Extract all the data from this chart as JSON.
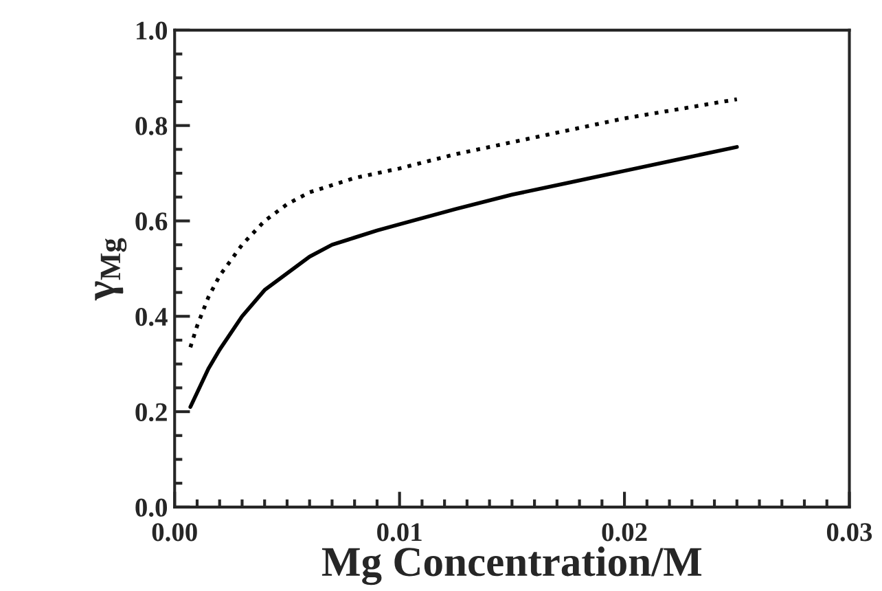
{
  "chart_data": {
    "type": "line",
    "xlabel": "Mg Concentration/M",
    "ylabel": "γ$_{Mg}$",
    "xlim": [
      0,
      0.03
    ],
    "ylim": [
      0,
      1.0
    ],
    "xticks": [
      {
        "value": 0,
        "label": "0.00"
      },
      0.01,
      0.02,
      0.03
    ],
    "yticks": [
      {
        "value": 0,
        "label": "0.0"
      },
      0.2,
      0.4,
      0.6,
      0.8,
      {
        "value": 1.0,
        "label": "1.0"
      }
    ],
    "grid": false,
    "legend": false,
    "series": [
      {
        "color": "#000000",
        "line_style": "solid",
        "x": [
          0.0007,
          0.001,
          0.0015,
          0.002,
          0.003,
          0.004,
          0.005,
          0.006,
          0.007,
          0.008,
          0.009,
          0.01,
          0.0125,
          0.015,
          0.0175,
          0.02,
          0.0225,
          0.025
        ],
        "values": [
          0.21,
          0.24,
          0.29,
          0.33,
          0.4,
          0.455,
          0.49,
          0.525,
          0.55,
          0.565,
          0.58,
          0.593,
          0.625,
          0.655,
          0.68,
          0.705,
          0.73,
          0.755
        ]
      },
      {
        "color": "#000000",
        "line_style": "dotted",
        "x": [
          0.0007,
          0.001,
          0.0015,
          0.002,
          0.003,
          0.004,
          0.005,
          0.006,
          0.007,
          0.008,
          0.009,
          0.01,
          0.0125,
          0.015,
          0.0175,
          0.02,
          0.0225,
          0.025
        ],
        "values": [
          0.335,
          0.38,
          0.44,
          0.485,
          0.55,
          0.6,
          0.635,
          0.66,
          0.675,
          0.69,
          0.7,
          0.71,
          0.74,
          0.765,
          0.79,
          0.815,
          0.835,
          0.855
        ]
      }
    ]
  }
}
